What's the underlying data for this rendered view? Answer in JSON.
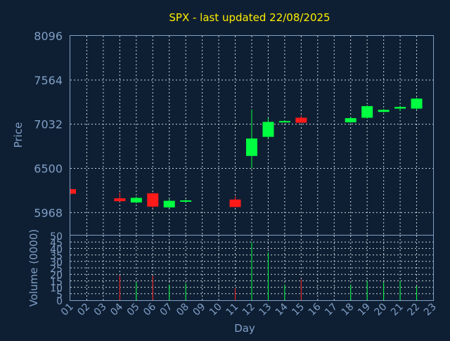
{
  "chart_data": {
    "type": "candlestick",
    "title": "SPX - last updated 22/08/2025",
    "ylabel": "Price",
    "volume_label": "Volume (0000)",
    "xlabel": "Day",
    "x_ticks": [
      "01",
      "02",
      "03",
      "04",
      "05",
      "06",
      "07",
      "08",
      "09",
      "10",
      "11",
      "12",
      "13",
      "14",
      "15",
      "16",
      "17",
      "18",
      "19",
      "20",
      "21",
      "22",
      "23"
    ],
    "price_ticks": [
      5968,
      6500,
      7032,
      7564,
      8096
    ],
    "price_ylim": [
      5700,
      8096
    ],
    "volume_ticks": [
      0,
      5,
      10,
      15,
      20,
      25,
      30,
      35,
      40,
      45,
      50
    ],
    "volume_ylim": [
      0,
      50
    ],
    "grid": true,
    "colors": {
      "up": "#00ff40",
      "down": "#ff1a1a",
      "background": "#0f1f33",
      "axis": "#7f9fc6",
      "title": "#ffee00"
    },
    "candles": [
      {
        "day": 1,
        "open": 6250,
        "high": 6260,
        "low": 6185,
        "close": 6195,
        "volume": 0
      },
      {
        "day": 4,
        "open": 6140,
        "high": 6210,
        "low": 6100,
        "close": 6105,
        "volume": 19
      },
      {
        "day": 5,
        "open": 6090,
        "high": 6160,
        "low": 6080,
        "close": 6145,
        "volume": 14
      },
      {
        "day": 6,
        "open": 6200,
        "high": 6205,
        "low": 6020,
        "close": 6040,
        "volume": 19
      },
      {
        "day": 7,
        "open": 6030,
        "high": 6130,
        "low": 6020,
        "close": 6110,
        "volume": 12
      },
      {
        "day": 8,
        "open": 6110,
        "high": 6125,
        "low": 6085,
        "close": 6115,
        "volume": 13
      },
      {
        "day": 11,
        "open": 6125,
        "high": 6165,
        "low": 6030,
        "close": 6035,
        "volume": 9
      },
      {
        "day": 12,
        "open": 6650,
        "high": 7210,
        "low": 6500,
        "close": 6860,
        "volume": 45
      },
      {
        "day": 13,
        "open": 6880,
        "high": 7110,
        "low": 6860,
        "close": 7060,
        "volume": 37
      },
      {
        "day": 14,
        "open": 7065,
        "high": 7080,
        "low": 7055,
        "close": 7070,
        "volume": 12
      },
      {
        "day": 15,
        "open": 7110,
        "high": 7135,
        "low": 7045,
        "close": 7050,
        "volume": 16
      },
      {
        "day": 18,
        "open": 7055,
        "high": 7120,
        "low": 7045,
        "close": 7105,
        "volume": 12
      },
      {
        "day": 19,
        "open": 7110,
        "high": 7260,
        "low": 7100,
        "close": 7250,
        "volume": 15
      },
      {
        "day": 20,
        "open": 7180,
        "high": 7215,
        "low": 7175,
        "close": 7205,
        "volume": 14
      },
      {
        "day": 21,
        "open": 7220,
        "high": 7255,
        "low": 7190,
        "close": 7240,
        "volume": 15
      },
      {
        "day": 22,
        "open": 7220,
        "high": 7350,
        "low": 7205,
        "close": 7340,
        "volume": 11
      }
    ]
  }
}
